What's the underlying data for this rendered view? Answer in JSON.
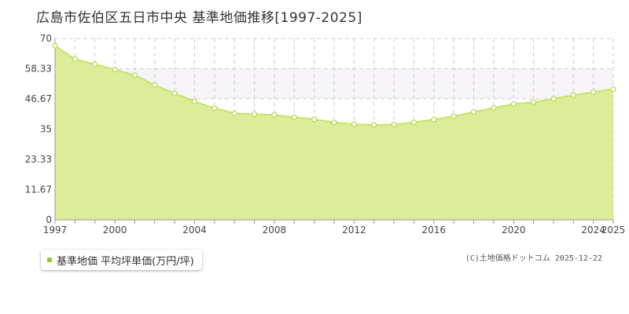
{
  "title": "広島市佐伯区五日市中央 基準地価推移[1997-2025]",
  "legend": {
    "label": "基準地価 平均坪単価(万円/坪)",
    "color": "#a0c33a"
  },
  "copyright": "(C)土地価格ドットコム 2025-12-22",
  "colors": {
    "line": "#c7e36a",
    "fill": "#dcec98",
    "point_stroke": "#b7d74e",
    "band": "#f6f4f8",
    "grid": "#cfcfcf",
    "axis": "#999999"
  },
  "chart_data": {
    "type": "area",
    "title": "広島市佐伯区五日市中央 基準地価推移[1997-2025]",
    "xlabel": "",
    "ylabel": "",
    "xlim": [
      1997,
      2025
    ],
    "ylim": [
      0,
      70
    ],
    "yticks": [
      0,
      11.67,
      23.33,
      35,
      46.67,
      58.33,
      70
    ],
    "ytick_labels": [
      "0",
      "11.67",
      "23.33",
      "35",
      "46.67",
      "58.33",
      "70"
    ],
    "xticks": [
      1997,
      2000,
      2004,
      2008,
      2012,
      2016,
      2020,
      2024,
      2025
    ],
    "xtick_labels": [
      "1997",
      "2000",
      "2004",
      "2008",
      "2012",
      "2016",
      "2020",
      "2024",
      "2025"
    ],
    "grid": true,
    "legend_position": "bottom-left",
    "series": [
      {
        "name": "基準地価 平均坪単価(万円/坪)",
        "x": [
          1997,
          1998,
          1999,
          2000,
          2001,
          2002,
          2003,
          2004,
          2005,
          2006,
          2007,
          2008,
          2009,
          2010,
          2011,
          2012,
          2013,
          2014,
          2015,
          2016,
          2017,
          2018,
          2019,
          2020,
          2021,
          2022,
          2023,
          2024,
          2025
        ],
        "values": [
          67.2,
          62.0,
          60.0,
          58.0,
          55.8,
          52.0,
          48.8,
          45.7,
          43.1,
          41.1,
          40.8,
          40.5,
          39.6,
          38.8,
          37.6,
          36.9,
          36.6,
          36.8,
          37.6,
          38.7,
          40.0,
          41.6,
          43.2,
          44.7,
          45.4,
          46.7,
          48.1,
          49.3,
          50.4
        ]
      }
    ]
  }
}
